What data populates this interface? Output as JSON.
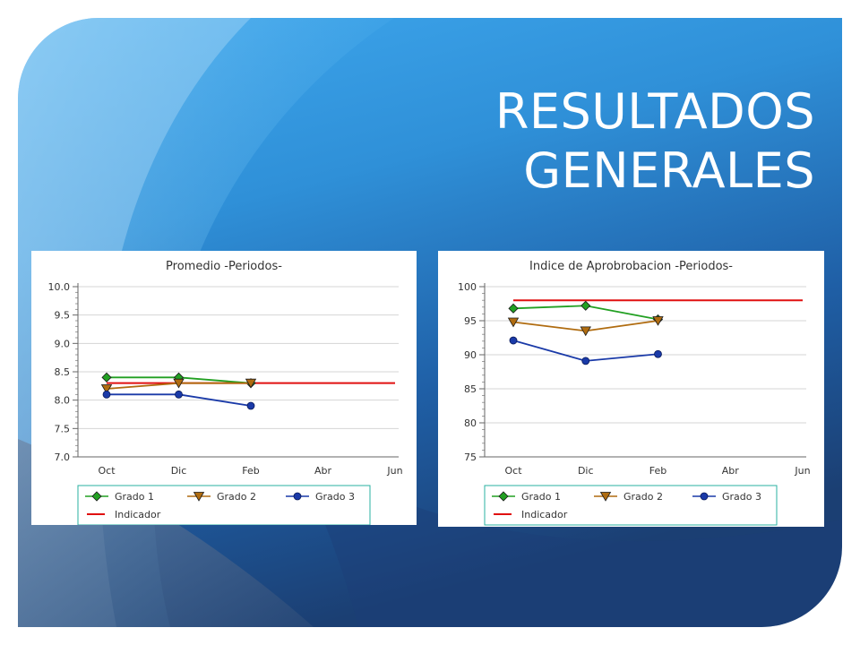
{
  "slide": {
    "title_line1": "RESULTADOS",
    "title_line2": "GENERALES"
  },
  "colors": {
    "grado1": "#22a022",
    "grado2": "#b06c10",
    "grado3": "#1a3aa8",
    "indicador": "#e01010",
    "legend_border": "#2ab0a0"
  },
  "chart_data": [
    {
      "type": "line",
      "title": "Promedio -Periodos-",
      "categories": [
        "Oct",
        "Dic",
        "Feb",
        "Abr",
        "Jun"
      ],
      "ylim": [
        7.0,
        10.0
      ],
      "yticks": [
        "7.0",
        "7.5",
        "8.0",
        "8.5",
        "9.0",
        "9.5",
        "10.0"
      ],
      "grid": true,
      "legend_position": "bottom",
      "series": [
        {
          "name": "Grado 1",
          "values": [
            8.4,
            8.4,
            8.3,
            null,
            null
          ],
          "marker": "diamond"
        },
        {
          "name": "Grado 2",
          "values": [
            8.2,
            8.3,
            8.3,
            null,
            null
          ],
          "marker": "triangle-down"
        },
        {
          "name": "Grado 3",
          "values": [
            8.1,
            8.1,
            7.9,
            null,
            null
          ],
          "marker": "circle"
        },
        {
          "name": "Indicador",
          "values": [
            8.3,
            8.3,
            8.3,
            8.3,
            8.3
          ],
          "marker": "none"
        }
      ]
    },
    {
      "type": "line",
      "title": "Indice de Aprobrobacion -Periodos-",
      "categories": [
        "Oct",
        "Dic",
        "Feb",
        "Abr",
        "Jun"
      ],
      "ylim": [
        75,
        100
      ],
      "yticks": [
        "75",
        "80",
        "85",
        "90",
        "95",
        "100"
      ],
      "grid": true,
      "legend_position": "bottom",
      "series": [
        {
          "name": "Grado 1",
          "values": [
            96.8,
            97.2,
            95.2,
            null,
            null
          ],
          "marker": "diamond"
        },
        {
          "name": "Grado 2",
          "values": [
            94.8,
            93.5,
            95.0,
            null,
            null
          ],
          "marker": "triangle-down"
        },
        {
          "name": "Grado 3",
          "values": [
            92.1,
            89.1,
            90.1,
            null,
            null
          ],
          "marker": "circle"
        },
        {
          "name": "Indicador",
          "values": [
            98.0,
            98.0,
            98.0,
            98.0,
            98.0
          ],
          "marker": "none"
        }
      ]
    }
  ]
}
